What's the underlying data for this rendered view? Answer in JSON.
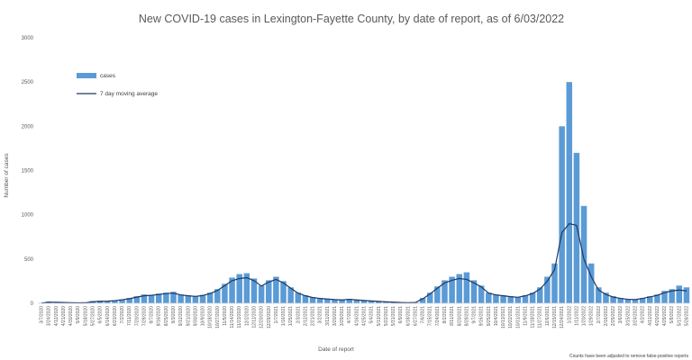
{
  "chart_data": {
    "type": "bar",
    "title": "New COVID-19 cases in Lexington-Fayette County, by date of report, as of 6/03/2022",
    "xlabel": "Date of report",
    "ylabel": "Number of cases",
    "ylim": [
      0,
      3000
    ],
    "yticks": [
      "0",
      "500",
      "1000",
      "1500",
      "2000",
      "2500",
      "3000"
    ],
    "grid": false,
    "legend_position": "top-left",
    "footnote": "Counts have been adjusted to remove false-positive reports",
    "colors": {
      "bars": "#5b9bd5",
      "line": "#1f3864"
    },
    "xtick_labels": [
      "3/7/2020",
      "3/24/2020",
      "4/12/2020",
      "4/21/2020",
      "4/30/2020",
      "5/9/2020",
      "5/18/2020",
      "5/27/2020",
      "6/5/2020",
      "6/14/2020",
      "6/23/2020",
      "7/2/2020",
      "7/11/2020",
      "7/20/2020",
      "7/29/2020",
      "8/7/2020",
      "8/16/2020",
      "8/25/2020",
      "9/3/2020",
      "9/12/2020",
      "9/21/2020",
      "9/30/2020",
      "10/9/2020",
      "10/18/2020",
      "10/27/2020",
      "11/5/2020",
      "11/14/2020",
      "11/23/2020",
      "12/2/2020",
      "12/11/2020",
      "12/20/2020",
      "12/29/2020",
      "1/7/2021",
      "1/16/2021",
      "1/25/2021",
      "2/3/2021",
      "2/12/2021",
      "2/21/2021",
      "3/2/2021",
      "3/11/2021",
      "3/20/2021",
      "3/29/2021",
      "4/7/2021",
      "4/16/2021",
      "4/25/2021",
      "5/4/2021",
      "5/13/2021",
      "5/22/2021",
      "5/31/2021",
      "6/9/2021",
      "6/18/2021",
      "6/27/2021",
      "7/6/2021",
      "7/15/2021",
      "7/24/2021",
      "8/2/2021",
      "8/11/2021",
      "8/20/2021",
      "8/29/2021",
      "9/7/2021",
      "9/16/2021",
      "9/25/2021",
      "10/4/2021",
      "10/13/2021",
      "10/22/2021",
      "10/31/2021",
      "11/9/2021",
      "11/18/2021",
      "11/27/2021",
      "12/6/2021",
      "12/15/2021",
      "12/24/2021",
      "1/2/2022",
      "1/11/2022",
      "1/20/2022",
      "1/29/2022",
      "2/7/2022",
      "2/16/2022",
      "2/25/2022",
      "3/6/2022",
      "3/15/2022",
      "3/24/2022",
      "4/2/2022",
      "4/11/2022",
      "4/20/2022",
      "4/29/2022",
      "5/8/2022",
      "5/17/2022",
      "5/26/2022"
    ],
    "series": [
      {
        "name": "cases",
        "values": [
          5,
          20,
          15,
          10,
          8,
          6,
          8,
          25,
          30,
          25,
          35,
          45,
          60,
          80,
          100,
          95,
          110,
          120,
          130,
          100,
          90,
          80,
          95,
          120,
          160,
          220,
          290,
          330,
          340,
          280,
          200,
          260,
          300,
          250,
          180,
          120,
          90,
          70,
          60,
          50,
          45,
          40,
          50,
          40,
          35,
          30,
          25,
          20,
          15,
          10,
          8,
          10,
          60,
          120,
          190,
          260,
          300,
          330,
          350,
          260,
          200,
          120,
          100,
          90,
          80,
          70,
          90,
          120,
          180,
          300,
          450,
          2000,
          2500,
          1700,
          1100,
          450,
          180,
          120,
          80,
          60,
          50,
          45,
          60,
          80,
          100,
          140,
          160,
          200,
          180
        ]
      },
      {
        "name": "7 day moving average",
        "values": [
          3,
          12,
          12,
          9,
          7,
          5,
          6,
          18,
          22,
          24,
          30,
          40,
          52,
          70,
          85,
          90,
          100,
          110,
          115,
          95,
          85,
          78,
          88,
          110,
          145,
          200,
          255,
          280,
          290,
          255,
          195,
          240,
          270,
          230,
          170,
          115,
          85,
          65,
          55,
          48,
          42,
          38,
          45,
          38,
          32,
          27,
          22,
          17,
          13,
          9,
          7,
          9,
          50,
          105,
          170,
          230,
          260,
          280,
          270,
          230,
          185,
          115,
          95,
          85,
          75,
          68,
          85,
          110,
          160,
          250,
          380,
          800,
          900,
          880,
          500,
          300,
          150,
          100,
          70,
          55,
          45,
          42,
          55,
          72,
          90,
          120,
          140,
          150,
          140
        ]
      }
    ]
  }
}
